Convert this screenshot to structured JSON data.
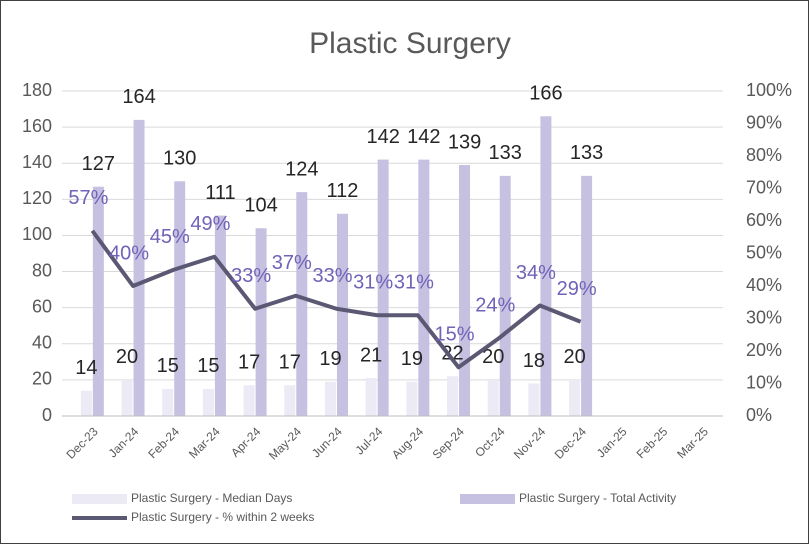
{
  "chart_data": {
    "type": "bar-line",
    "title": "Plastic Surgery",
    "categories": [
      "Dec-23",
      "Jan-24",
      "Feb-24",
      "Mar-24",
      "Apr-24",
      "May-24",
      "Jun-24",
      "Jul-24",
      "Aug-24",
      "Sep-24",
      "Oct-24",
      "Nov-24",
      "Dec-24",
      "Jan-25",
      "Feb-25",
      "Mar-25"
    ],
    "series": [
      {
        "name": "Plastic Surgery - Median Days",
        "type": "bar",
        "color": "#ebeaf5",
        "values": [
          14,
          20,
          15,
          15,
          17,
          17,
          19,
          21,
          19,
          22,
          20,
          18,
          20,
          null,
          null,
          null
        ]
      },
      {
        "name": "Plastic Surgery - Total Activity",
        "type": "bar",
        "color": "#c6c1e1",
        "values": [
          127,
          164,
          130,
          111,
          104,
          124,
          112,
          142,
          142,
          139,
          133,
          166,
          133,
          null,
          null,
          null
        ]
      },
      {
        "name": "Plastic Surgery - % within 2 weeks",
        "type": "line",
        "axis": "y2",
        "color": "#5b5873",
        "values": [
          57,
          40,
          45,
          49,
          33,
          37,
          33,
          31,
          31,
          15,
          24,
          34,
          29,
          null,
          null,
          null
        ],
        "value_labels": [
          "57%",
          "40%",
          "45%",
          "49%",
          "33%",
          "37%",
          "33%",
          "31%",
          "31%",
          "15%",
          "24%",
          "34%",
          "29%",
          null,
          null,
          null
        ]
      }
    ],
    "ylim": [
      0,
      180
    ],
    "yticks": [
      0,
      20,
      40,
      60,
      80,
      100,
      120,
      140,
      160,
      180
    ],
    "y2lim": [
      0,
      100
    ],
    "y2ticks": [
      {
        "value": 0,
        "label": "0%"
      },
      {
        "value": 10,
        "label": "10%"
      },
      {
        "value": 20,
        "label": "20%"
      },
      {
        "value": 30,
        "label": "30%"
      },
      {
        "value": 40,
        "label": "40%"
      },
      {
        "value": 50,
        "label": "50%"
      },
      {
        "value": 60,
        "label": "60%"
      },
      {
        "value": 70,
        "label": "70%"
      },
      {
        "value": 80,
        "label": "80%"
      },
      {
        "value": 90,
        "label": "90%"
      },
      {
        "value": 100,
        "label": "100%"
      }
    ],
    "grid": true
  }
}
